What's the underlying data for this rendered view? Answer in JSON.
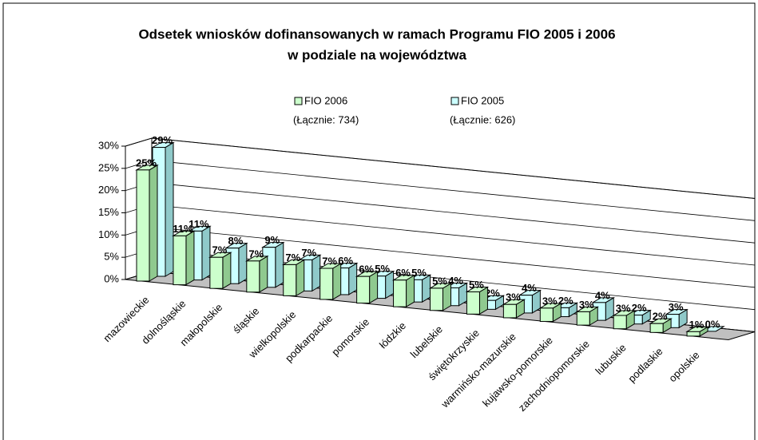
{
  "chart_data": {
    "type": "bar3d",
    "title": "Odsetek wniosków dofinansowanych w ramach Programu FIO 2005 i 2006",
    "subtitle": "w podziale na województwa",
    "categories": [
      "mazowieckie",
      "dolnośląskie",
      "małopolskie",
      "śląskie",
      "wielkopolskie",
      "podkarpackie",
      "pomorskie",
      "łódzkie",
      "lubelskie",
      "świętokrzyskie",
      "warmińsko-mazurskie",
      "kujawsko-pomorskie",
      "zachodniopomorskie",
      "lubuskie",
      "podlaskie",
      "opolskie"
    ],
    "series": [
      {
        "name": "FIO 2006",
        "note": "(Łącznie: 734)",
        "color": "#ccffcc",
        "side_color": "#8fc98f",
        "values": [
          25,
          11,
          7,
          7,
          7,
          7,
          6,
          6,
          5,
          5,
          3,
          3,
          3,
          3,
          2,
          1
        ],
        "value_labels": [
          "25%",
          "11%",
          "7%",
          "7%",
          "7%",
          "7%",
          "6%",
          "6%",
          "5%",
          "5%",
          "3%",
          "3%",
          "3%",
          "3%",
          "2%",
          "1%"
        ]
      },
      {
        "name": "FIO 2005",
        "note": "(Łącznie: 626)",
        "color": "#ccffff",
        "side_color": "#8fc9c9",
        "values": [
          29,
          11,
          8,
          9,
          7,
          6,
          5,
          5,
          4,
          2,
          4,
          2,
          4,
          2,
          3,
          0
        ],
        "value_labels": [
          "29%",
          "11%",
          "8%",
          "9%",
          "7%",
          "6%",
          "5%",
          "5%",
          "4%",
          "2%",
          "4%",
          "2%",
          "4%",
          "2%",
          "3%",
          "0%"
        ]
      }
    ],
    "ylim": [
      0,
      30
    ],
    "yticks": [
      {
        "value": 0,
        "label": "0%"
      },
      {
        "value": 5,
        "label": "5%"
      },
      {
        "value": 10,
        "label": "10%"
      },
      {
        "value": 15,
        "label": "15%"
      },
      {
        "value": 20,
        "label": "20%"
      },
      {
        "value": 25,
        "label": "25%"
      },
      {
        "value": 30,
        "label": "30%"
      }
    ],
    "grid": true,
    "legend": "top"
  }
}
